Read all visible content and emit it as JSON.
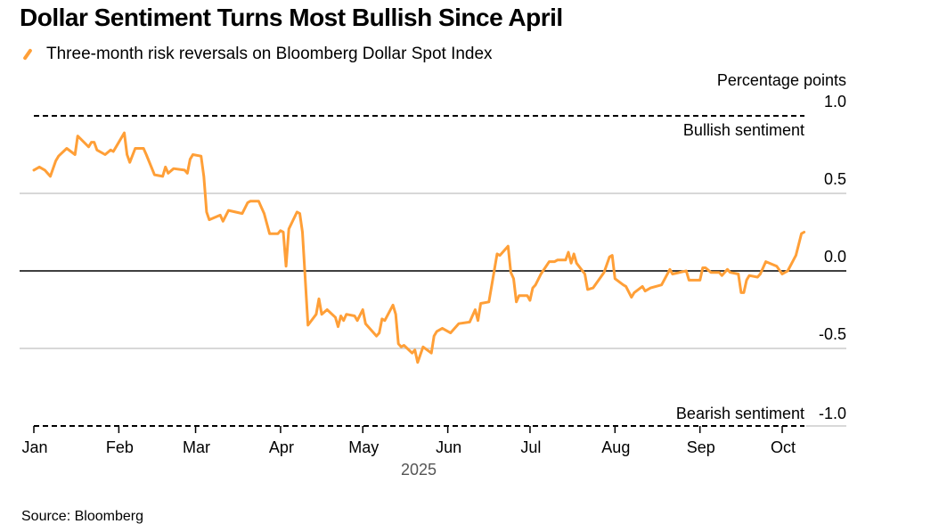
{
  "title": "Dollar Sentiment Turns Most Bullish Since April",
  "source": "Source: Bloomberg",
  "colors": {
    "line": "#ff9f37",
    "grid": "#cccccc",
    "zero": "#000000"
  },
  "chart_data": {
    "type": "line",
    "title": "Dollar Sentiment Turns Most Bullish Since April",
    "ylabel": "Percentage points",
    "xlabel": "2025",
    "ylim": [
      -1.0,
      1.0
    ],
    "yticks": [
      1.0,
      0.5,
      0.0,
      -0.5,
      -1.0
    ],
    "ytick_labels": [
      "1.0",
      "0.5",
      "0.0",
      "-0.5",
      "-1.0"
    ],
    "xtick_labels": [
      "Jan",
      "Feb",
      "Mar",
      "Apr",
      "May",
      "Jun",
      "Jul",
      "Aug",
      "Sep",
      "Oct"
    ],
    "xticks": [
      "2025-01-01",
      "2025-02-01",
      "2025-03-01",
      "2025-04-01",
      "2025-05-01",
      "2025-06-01",
      "2025-07-01",
      "2025-08-01",
      "2025-09-01",
      "2025-10-01"
    ],
    "grid": true,
    "legend_position": "top-left",
    "annotations": [
      {
        "text": "Bullish sentiment",
        "y": 1.0
      },
      {
        "text": "Bearish sentiment",
        "y": -1.0
      }
    ],
    "series": [
      {
        "name": "Three-month risk reversals on Bloomberg Dollar Spot Index",
        "x": [
          "2025-01-01",
          "2025-01-03",
          "2025-01-05",
          "2025-01-07",
          "2025-01-09",
          "2025-01-10",
          "2025-01-13",
          "2025-01-16",
          "2025-01-17",
          "2025-01-21",
          "2025-01-22",
          "2025-01-23",
          "2025-01-24",
          "2025-01-27",
          "2025-01-29",
          "2025-01-30",
          "2025-01-31",
          "2025-02-03",
          "2025-02-04",
          "2025-02-05",
          "2025-02-07",
          "2025-02-10",
          "2025-02-11",
          "2025-02-14",
          "2025-02-17",
          "2025-02-18",
          "2025-02-19",
          "2025-02-21",
          "2025-02-25",
          "2025-02-26",
          "2025-02-27",
          "2025-02-28",
          "2025-03-03",
          "2025-03-04",
          "2025-03-05",
          "2025-03-06",
          "2025-03-10",
          "2025-03-11",
          "2025-03-13",
          "2025-03-18",
          "2025-03-20",
          "2025-03-21",
          "2025-03-24",
          "2025-03-25",
          "2025-03-26",
          "2025-03-28",
          "2025-03-31",
          "2025-04-01",
          "2025-04-02",
          "2025-04-03",
          "2025-04-04",
          "2025-04-07",
          "2025-04-08",
          "2025-04-09",
          "2025-04-11",
          "2025-04-14",
          "2025-04-15",
          "2025-04-16",
          "2025-04-18",
          "2025-04-21",
          "2025-04-22",
          "2025-04-23",
          "2025-04-24",
          "2025-04-25",
          "2025-04-28",
          "2025-04-29",
          "2025-05-01",
          "2025-05-02",
          "2025-05-06",
          "2025-05-07",
          "2025-05-08",
          "2025-05-09",
          "2025-05-12",
          "2025-05-13",
          "2025-05-14",
          "2025-05-15",
          "2025-05-16",
          "2025-05-19",
          "2025-05-20",
          "2025-05-21",
          "2025-05-23",
          "2025-05-26",
          "2025-05-27",
          "2025-05-28",
          "2025-05-30",
          "2025-06-02",
          "2025-06-04",
          "2025-06-05",
          "2025-06-09",
          "2025-06-11",
          "2025-06-12",
          "2025-06-13",
          "2025-06-16",
          "2025-06-19",
          "2025-06-20",
          "2025-06-23",
          "2025-06-24",
          "2025-06-25",
          "2025-06-26",
          "2025-06-27",
          "2025-06-30",
          "2025-07-01",
          "2025-07-02",
          "2025-07-03",
          "2025-07-05",
          "2025-07-08",
          "2025-07-10",
          "2025-07-11",
          "2025-07-14",
          "2025-07-15",
          "2025-07-16",
          "2025-07-17",
          "2025-07-18",
          "2025-07-21",
          "2025-07-22",
          "2025-07-24",
          "2025-07-28",
          "2025-07-30",
          "2025-07-31",
          "2025-08-01",
          "2025-08-04",
          "2025-08-05",
          "2025-08-07",
          "2025-08-08",
          "2025-08-11",
          "2025-08-12",
          "2025-08-14",
          "2025-08-18",
          "2025-08-21",
          "2025-08-22",
          "2025-08-27",
          "2025-08-28",
          "2025-09-01",
          "2025-09-02",
          "2025-09-03",
          "2025-09-05",
          "2025-09-08",
          "2025-09-09",
          "2025-09-11",
          "2025-09-12",
          "2025-09-15",
          "2025-09-16",
          "2025-09-17",
          "2025-09-18",
          "2025-09-19",
          "2025-09-22",
          "2025-09-23",
          "2025-09-25",
          "2025-09-29",
          "2025-10-01",
          "2025-10-03",
          "2025-10-06",
          "2025-10-08",
          "2025-10-09"
        ],
        "y": [
          0.65,
          0.67,
          0.65,
          0.61,
          0.71,
          0.74,
          0.79,
          0.75,
          0.87,
          0.8,
          0.83,
          0.83,
          0.78,
          0.75,
          0.78,
          0.77,
          0.8,
          0.89,
          0.75,
          0.7,
          0.79,
          0.79,
          0.75,
          0.62,
          0.61,
          0.67,
          0.63,
          0.66,
          0.65,
          0.63,
          0.72,
          0.75,
          0.74,
          0.61,
          0.38,
          0.33,
          0.36,
          0.32,
          0.39,
          0.37,
          0.44,
          0.45,
          0.45,
          0.41,
          0.37,
          0.24,
          0.24,
          0.26,
          0.25,
          0.03,
          0.27,
          0.38,
          0.37,
          0.25,
          -0.35,
          -0.28,
          -0.18,
          -0.28,
          -0.25,
          -0.3,
          -0.36,
          -0.29,
          -0.32,
          -0.28,
          -0.29,
          -0.32,
          -0.25,
          -0.34,
          -0.42,
          -0.4,
          -0.31,
          -0.32,
          -0.22,
          -0.28,
          -0.47,
          -0.49,
          -0.48,
          -0.53,
          -0.51,
          -0.59,
          -0.49,
          -0.53,
          -0.42,
          -0.39,
          -0.37,
          -0.4,
          -0.36,
          -0.34,
          -0.33,
          -0.25,
          -0.32,
          -0.21,
          -0.2,
          0.11,
          0.1,
          0.16,
          -0.01,
          -0.05,
          -0.2,
          -0.16,
          -0.16,
          -0.19,
          -0.11,
          -0.09,
          -0.02,
          0.06,
          0.06,
          0.07,
          0.07,
          0.12,
          0.05,
          0.11,
          0.05,
          -0.02,
          -0.12,
          -0.11,
          -0.01,
          0.09,
          0.1,
          -0.05,
          -0.09,
          -0.1,
          -0.17,
          -0.14,
          -0.1,
          -0.13,
          -0.11,
          -0.09,
          0.01,
          -0.02,
          0.0,
          -0.06,
          -0.06,
          0.02,
          0.02,
          -0.01,
          -0.01,
          -0.03,
          0.01,
          -0.01,
          -0.02,
          -0.14,
          -0.14,
          -0.06,
          -0.03,
          -0.04,
          -0.02,
          0.06,
          0.03,
          -0.02,
          0.0,
          0.1,
          0.24,
          0.25
        ]
      }
    ]
  }
}
